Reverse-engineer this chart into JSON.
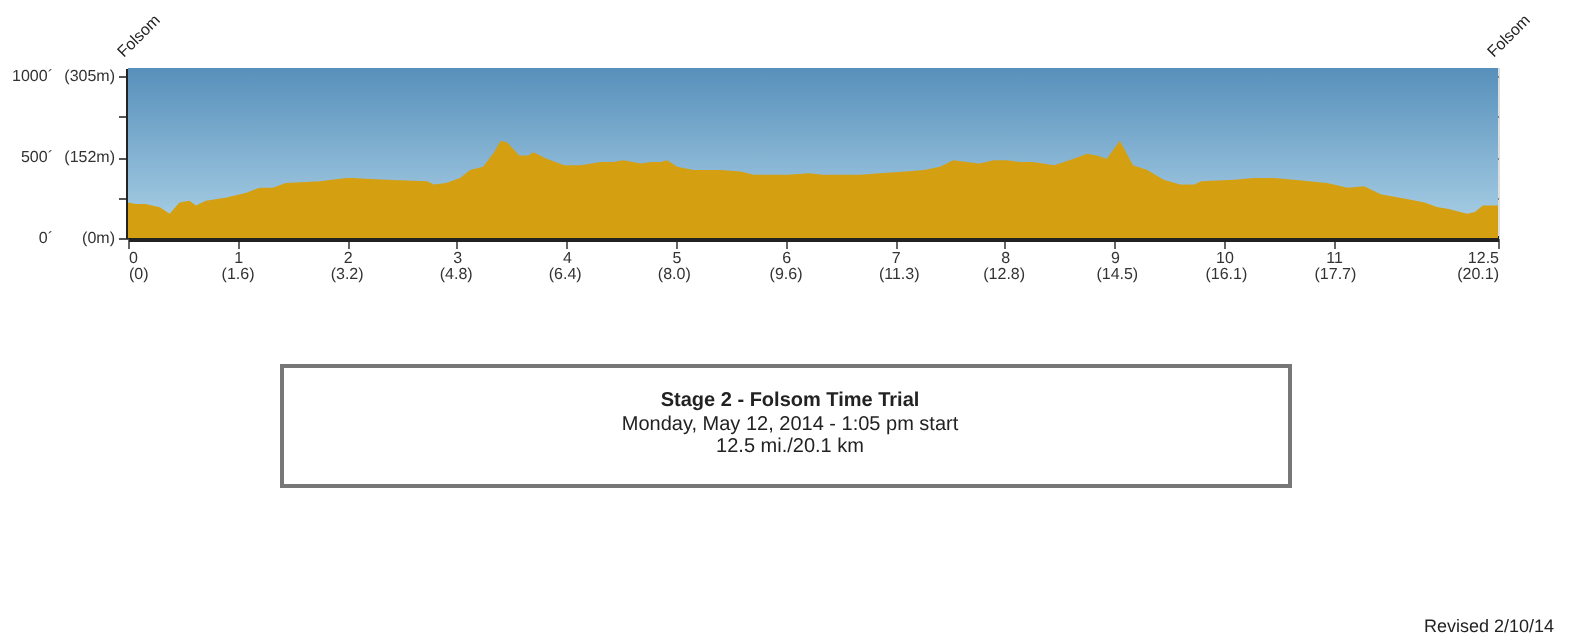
{
  "chart_data": {
    "type": "area",
    "title": "Stage 2 - Folsom Time Trial",
    "subtitle": [
      "Monday, May 12, 2014 - 1:05 pm start",
      "12.5 mi./20.1 km"
    ],
    "x": [
      0,
      0.07,
      0.16,
      0.29,
      0.38,
      0.47,
      0.56,
      0.62,
      0.71,
      0.9,
      1.08,
      1.2,
      1.32,
      1.44,
      1.75,
      1.99,
      2.05,
      2.36,
      2.73,
      2.79,
      2.9,
      3.03,
      3.12,
      3.24,
      3.34,
      3.4,
      3.46,
      3.57,
      3.65,
      3.7,
      3.82,
      3.98,
      4.13,
      4.31,
      4.43,
      4.52,
      4.68,
      4.77,
      4.86,
      4.92,
      5.01,
      5.16,
      5.41,
      5.59,
      5.71,
      6.02,
      6.22,
      6.34,
      6.68,
      6.86,
      7.1,
      7.26,
      7.41,
      7.53,
      7.65,
      7.77,
      7.9,
      8.02,
      8.14,
      8.26,
      8.45,
      8.63,
      8.75,
      8.84,
      8.93,
      9.05,
      9.17,
      9.3,
      9.45,
      9.6,
      9.73,
      9.79,
      10.09,
      10.27,
      10.46,
      10.64,
      10.94,
      11.13,
      11.28,
      11.43,
      11.68,
      11.83,
      11.95,
      12.04,
      12.22,
      12.29,
      12.36,
      12.5
    ],
    "series": [
      {
        "color": "#d4a012",
        "values": [
          220,
          210,
          210,
          190,
          150,
          220,
          230,
          200,
          230,
          250,
          280,
          310,
          310,
          340,
          350,
          370,
          370,
          360,
          350,
          330,
          340,
          370,
          420,
          440,
          530,
          600,
          590,
          510,
          510,
          530,
          490,
          450,
          450,
          470,
          470,
          480,
          460,
          470,
          470,
          480,
          440,
          420,
          420,
          410,
          390,
          390,
          400,
          390,
          390,
          400,
          410,
          420,
          440,
          480,
          470,
          460,
          480,
          480,
          470,
          470,
          450,
          490,
          520,
          510,
          490,
          600,
          450,
          420,
          360,
          330,
          330,
          350,
          360,
          370,
          370,
          360,
          340,
          310,
          320,
          270,
          240,
          220,
          190,
          180,
          150,
          160,
          200,
          200
        ]
      }
    ],
    "xlim": [
      0,
      12.5
    ],
    "xticks": [
      0,
      1,
      2,
      3,
      4,
      5,
      6,
      7,
      8,
      9,
      10,
      11,
      12.5
    ],
    "x2lim": [
      0,
      20.1
    ],
    "x2ticks": [
      {
        "value": 0,
        "label": "(0)"
      },
      {
        "value": 1.6,
        "label": "(1.6)"
      },
      {
        "value": 3.2,
        "label": "(3.2)"
      },
      {
        "value": 4.8,
        "label": "(4.8)"
      },
      {
        "value": 6.4,
        "label": "(6.4)"
      },
      {
        "value": 8.0,
        "label": "(8.0)"
      },
      {
        "value": 9.64,
        "label": "(9.6)"
      },
      {
        "value": 11.3,
        "label": "(11.3)"
      },
      {
        "value": 12.84,
        "label": "(12.8)"
      },
      {
        "value": 14.5,
        "label": "(14.5)"
      },
      {
        "value": 16.1,
        "label": "(16.1)"
      },
      {
        "value": 17.7,
        "label": "(17.7)"
      },
      {
        "value": 20.1,
        "label": "(20.1)"
      }
    ],
    "ylim": [
      0,
      1050
    ],
    "yticks": [
      {
        "value": 0,
        "label": "0´"
      },
      {
        "value": 250,
        "label": null
      },
      {
        "value": 500,
        "label": "500´"
      },
      {
        "value": 750,
        "label": null
      },
      {
        "value": 1000,
        "label": "1000´"
      }
    ],
    "y2lim": [
      0,
      320
    ],
    "y2ticks": [
      {
        "value": 0,
        "label": "(0m)"
      },
      {
        "value": 152,
        "label": "(152m)"
      },
      {
        "value": 305,
        "label": "(305m)"
      }
    ],
    "grid": "y",
    "annotations": [
      "Folsom",
      "Folsom",
      "Revised 2/10/14"
    ]
  }
}
